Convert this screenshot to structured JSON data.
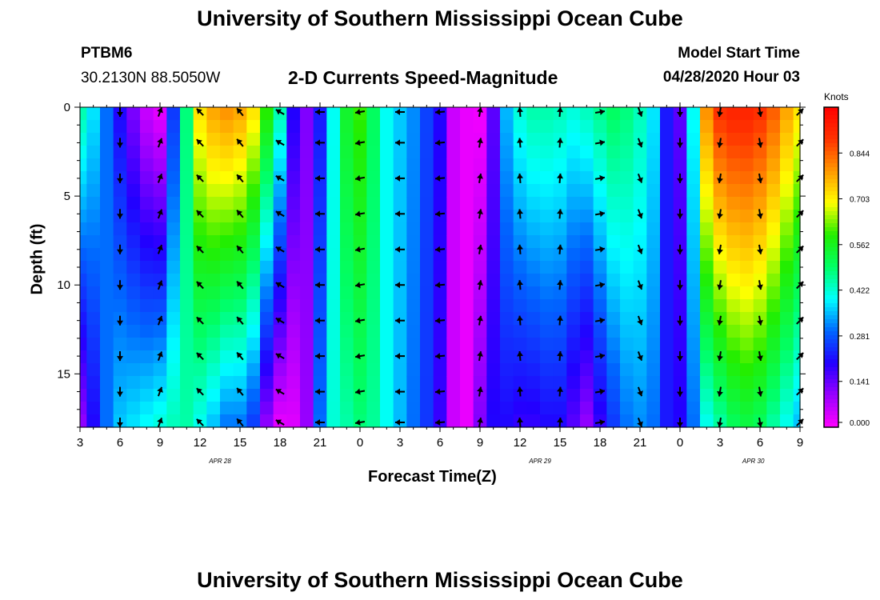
{
  "header": {
    "title": "University of Southern Mississippi Ocean Cube",
    "station_id": "PTBM6",
    "location": "30.2130N 88.5050W",
    "subtitle": "2-D Currents Speed-Magnitude",
    "model_start_label": "Model Start Time",
    "model_start_value": "04/28/2020 Hour 03"
  },
  "footer": {
    "title": "University of Southern Mississippi Ocean Cube"
  },
  "colors": {
    "arrow": "#000000",
    "colormap": [
      "#ff00ff",
      "#9900ff",
      "#2200ff",
      "#0066ff",
      "#00ffff",
      "#00ff66",
      "#22ee00",
      "#ffff00",
      "#ff9900",
      "#ff3300",
      "#ff0000"
    ]
  },
  "chart_data": {
    "type": "heatmap",
    "title": "2-D Currents Speed-Magnitude",
    "xlabel": "Forecast Time(Z)",
    "ylabel": "Depth (ft)",
    "x_start_hour": 3,
    "x_end_hour": 57,
    "x_ticks": [
      {
        "hour": 3,
        "label": "3"
      },
      {
        "hour": 6,
        "label": "6"
      },
      {
        "hour": 9,
        "label": "9"
      },
      {
        "hour": 12,
        "label": "12"
      },
      {
        "hour": 15,
        "label": "15"
      },
      {
        "hour": 18,
        "label": "18"
      },
      {
        "hour": 21,
        "label": "21"
      },
      {
        "hour": 24,
        "label": "0"
      },
      {
        "hour": 27,
        "label": "3"
      },
      {
        "hour": 30,
        "label": "6"
      },
      {
        "hour": 33,
        "label": "9"
      },
      {
        "hour": 36,
        "label": "12"
      },
      {
        "hour": 39,
        "label": "15"
      },
      {
        "hour": 42,
        "label": "18"
      },
      {
        "hour": 45,
        "label": "21"
      },
      {
        "hour": 48,
        "label": "0"
      },
      {
        "hour": 51,
        "label": "3"
      },
      {
        "hour": 54,
        "label": "6"
      },
      {
        "hour": 57,
        "label": "9"
      }
    ],
    "date_labels": [
      {
        "hour": 13.5,
        "label": "APR 28"
      },
      {
        "hour": 37.5,
        "label": "APR 29"
      },
      {
        "hour": 53.5,
        "label": "APR 30"
      }
    ],
    "ylim": [
      0,
      18
    ],
    "y_ticks": [
      0,
      5,
      10,
      15
    ],
    "colorbar": {
      "title": "Knots",
      "range": [
        0.0,
        0.985
      ],
      "ticks": [
        "0.000",
        "0.141",
        "0.281",
        "0.422",
        "0.562",
        "0.703",
        "0.844"
      ]
    },
    "speed_profile": {
      "description": "speed in knots at surface (top) and bottom per forecast hour",
      "hours": [
        3,
        4,
        5,
        6,
        7,
        8,
        9,
        10,
        11,
        12,
        13,
        14,
        15,
        16,
        17,
        18,
        19,
        20,
        21,
        22,
        23,
        24,
        25,
        26,
        27,
        28,
        29,
        30,
        31,
        32,
        33,
        34,
        35,
        36,
        37,
        38,
        39,
        40,
        41,
        42,
        43,
        44,
        45,
        46,
        47,
        48,
        49,
        50,
        51,
        52,
        53,
        54,
        55,
        56,
        57
      ],
      "surface": [
        0.45,
        0.38,
        0.3,
        0.2,
        0.12,
        0.05,
        0.02,
        0.25,
        0.48,
        0.72,
        0.78,
        0.8,
        0.78,
        0.72,
        0.6,
        0.45,
        0.2,
        0.12,
        0.22,
        0.4,
        0.55,
        0.6,
        0.5,
        0.4,
        0.36,
        0.32,
        0.26,
        0.2,
        0.05,
        0.02,
        0.01,
        0.15,
        0.35,
        0.42,
        0.45,
        0.45,
        0.44,
        0.42,
        0.44,
        0.47,
        0.5,
        0.48,
        0.44,
        0.38,
        0.22,
        0.15,
        0.4,
        0.8,
        0.9,
        0.92,
        0.92,
        0.9,
        0.85,
        0.78,
        0.72
      ],
      "bottom": [
        0.1,
        0.2,
        0.3,
        0.36,
        0.38,
        0.4,
        0.42,
        0.44,
        0.45,
        0.4,
        0.35,
        0.3,
        0.3,
        0.25,
        0.1,
        0.02,
        0.03,
        0.1,
        0.3,
        0.42,
        0.45,
        0.48,
        0.46,
        0.4,
        0.35,
        0.3,
        0.25,
        0.18,
        0.05,
        0.02,
        0.12,
        0.2,
        0.2,
        0.18,
        0.18,
        0.2,
        0.2,
        0.15,
        0.1,
        0.18,
        0.25,
        0.3,
        0.32,
        0.3,
        0.22,
        0.2,
        0.3,
        0.4,
        0.45,
        0.5,
        0.52,
        0.5,
        0.45,
        0.4,
        0.35
      ]
    },
    "arrows": {
      "hours": [
        6,
        9,
        12,
        15,
        18,
        21,
        24,
        27,
        30,
        33,
        36,
        39,
        42,
        45,
        48,
        51,
        54,
        57
      ],
      "depths": [
        0,
        2,
        4,
        6,
        8,
        10,
        12,
        14,
        16,
        18
      ],
      "direction_deg_by_hour": [
        180,
        20,
        315,
        320,
        300,
        270,
        260,
        270,
        265,
        10,
        355,
        5,
        80,
        160,
        180,
        190,
        170,
        45
      ]
    }
  }
}
